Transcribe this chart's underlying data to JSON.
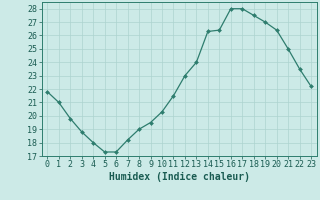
{
  "x": [
    0,
    1,
    2,
    3,
    4,
    5,
    6,
    7,
    8,
    9,
    10,
    11,
    12,
    13,
    14,
    15,
    16,
    17,
    18,
    19,
    20,
    21,
    22,
    23
  ],
  "y": [
    21.8,
    21.0,
    19.8,
    18.8,
    18.0,
    17.3,
    17.3,
    18.2,
    19.0,
    19.5,
    20.3,
    21.5,
    23.0,
    24.0,
    26.3,
    26.4,
    28.0,
    28.0,
    27.5,
    27.0,
    26.4,
    25.0,
    23.5,
    22.2
  ],
  "line_color": "#2e7d6e",
  "marker": "D",
  "marker_size": 2.0,
  "bg_color": "#cceae7",
  "grid_color": "#add4cf",
  "xlabel": "Humidex (Indice chaleur)",
  "ylabel_ticks": [
    17,
    18,
    19,
    20,
    21,
    22,
    23,
    24,
    25,
    26,
    27,
    28
  ],
  "ylim": [
    17,
    28.5
  ],
  "xlim": [
    -0.5,
    23.5
  ],
  "xlabel_fontsize": 7,
  "tick_fontsize": 6,
  "tick_color": "#1a5c52",
  "axis_color": "#2e7d6e"
}
